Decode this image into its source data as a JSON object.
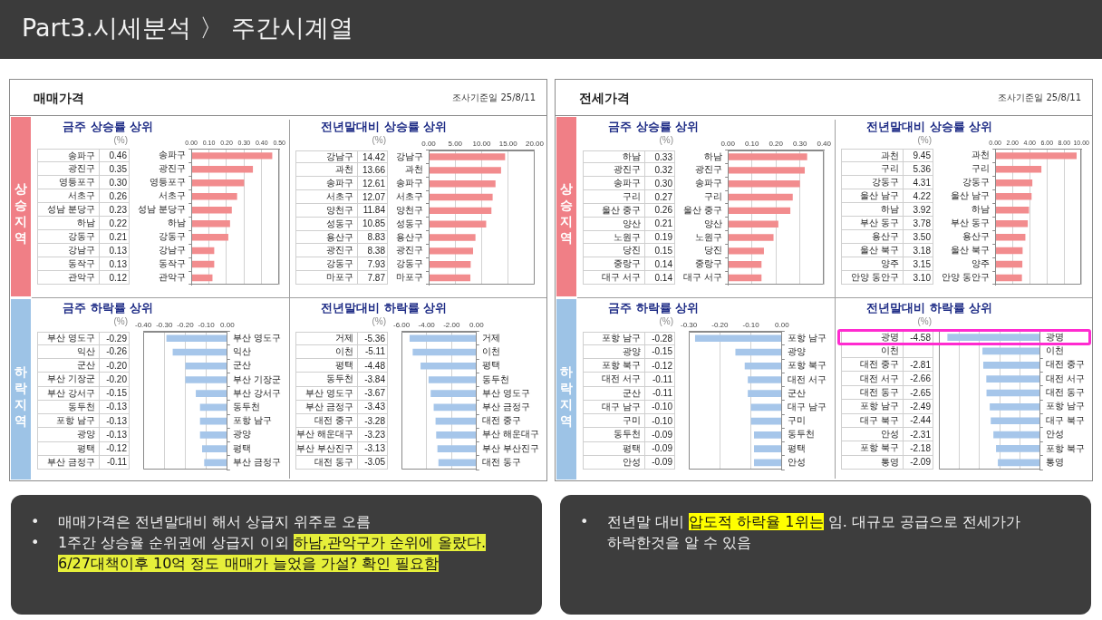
{
  "chart_data": [
    {
      "type": "other",
      "title": "Part3.시세분석 〉 주간시계열"
    },
    {
      "type": "other",
      "title": "매매가격",
      "annotations": [
        "조사기준일 25/8/11",
        "상승지역",
        "하락지역"
      ]
    },
    {
      "type": "bar",
      "orientation": "horizontal",
      "title": "금주 상승률 상위",
      "annotations": [
        "(%)"
      ],
      "categories": [
        "송파구",
        "광진구",
        "영등포구",
        "서초구",
        "성남 분당구",
        "하남",
        "강동구",
        "강남구",
        "동작구",
        "관악구"
      ],
      "values": [
        0.46,
        0.35,
        0.3,
        0.26,
        0.23,
        0.22,
        0.21,
        0.13,
        0.13,
        0.12
      ],
      "value_labels": [
        "0.46",
        "0.35",
        "0.30",
        "0.26",
        "0.23",
        "0.22",
        "0.21",
        "0.13",
        "0.13",
        "0.12"
      ],
      "color": "#f28c8e",
      "xlim": [
        0,
        0.5
      ],
      "xticks": [
        {
          "value": 0,
          "label": "0.00"
        },
        {
          "value": 0.1,
          "label": "0.10"
        },
        {
          "value": 0.2,
          "label": "0.20"
        },
        {
          "value": 0.3,
          "label": "0.30"
        },
        {
          "value": 0.4,
          "label": "0.40"
        },
        {
          "value": 0.5,
          "label": "0.50"
        }
      ],
      "grid": "x"
    },
    {
      "type": "bar",
      "orientation": "horizontal",
      "title": "전년말대비 상승률 상위",
      "annotations": [
        "(%)"
      ],
      "categories": [
        "강남구",
        "과천",
        "송파구",
        "서초구",
        "양천구",
        "성동구",
        "용산구",
        "광진구",
        "강동구",
        "마포구"
      ],
      "values": [
        14.42,
        13.66,
        12.61,
        12.07,
        11.84,
        10.85,
        8.83,
        8.38,
        7.93,
        7.87
      ],
      "value_labels": [
        "14.42",
        "13.66",
        "12.61",
        "12.07",
        "11.84",
        "10.85",
        "8.83",
        "8.38",
        "7.93",
        "7.87"
      ],
      "color": "#f28c8e",
      "xlim": [
        0,
        20
      ],
      "xticks": [
        {
          "value": 0,
          "label": "0.00"
        },
        {
          "value": 5,
          "label": "5.00"
        },
        {
          "value": 10,
          "label": "10.00"
        },
        {
          "value": 15,
          "label": "15.00"
        },
        {
          "value": 20,
          "label": "20.00"
        }
      ],
      "grid": "x"
    },
    {
      "type": "bar",
      "orientation": "horizontal",
      "title": "금주 하락률 상위",
      "annotations": [
        "(%)"
      ],
      "categories": [
        "부산 영도구",
        "익산",
        "군산",
        "부산 기장군",
        "부산 강서구",
        "동두천",
        "포항 남구",
        "광양",
        "평택",
        "부산 금정구"
      ],
      "values": [
        -0.29,
        -0.26,
        -0.2,
        -0.2,
        -0.15,
        -0.13,
        -0.13,
        -0.13,
        -0.12,
        -0.11
      ],
      "value_labels": [
        "-0.29",
        "-0.26",
        "-0.20",
        "-0.20",
        "-0.15",
        "-0.13",
        "-0.13",
        "-0.13",
        "-0.12",
        "-0.11"
      ],
      "color": "#a6c6ea",
      "xlim": [
        -0.4,
        0
      ],
      "xticks": [
        {
          "value": -0.4,
          "label": "-0.40"
        },
        {
          "value": -0.3,
          "label": "-0.30"
        },
        {
          "value": -0.2,
          "label": "-0.20"
        },
        {
          "value": -0.1,
          "label": "-0.10"
        },
        {
          "value": 0,
          "label": "0.00"
        }
      ],
      "grid": "x"
    },
    {
      "type": "bar",
      "orientation": "horizontal",
      "title": "전년말대비 하락률 상위",
      "annotations": [
        "(%)"
      ],
      "categories": [
        "거제",
        "이천",
        "평택",
        "동두천",
        "부산 영도구",
        "부산 금정구",
        "대전 중구",
        "부산 해운대구",
        "부산 부산진구",
        "대전 동구"
      ],
      "values": [
        -5.36,
        -5.11,
        -4.48,
        -3.84,
        -3.67,
        -3.43,
        -3.28,
        -3.23,
        -3.13,
        -3.05
      ],
      "value_labels": [
        "-5.36",
        "-5.11",
        "-4.48",
        "-3.84",
        "-3.67",
        "-3.43",
        "-3.28",
        "-3.23",
        "-3.13",
        "-3.05"
      ],
      "color": "#a6c6ea",
      "xlim": [
        -6,
        0
      ],
      "xticks": [
        {
          "value": -6,
          "label": "-6.00"
        },
        {
          "value": -4,
          "label": "-4.00"
        },
        {
          "value": -2,
          "label": "-2.00"
        },
        {
          "value": 0,
          "label": "0.00"
        }
      ],
      "grid": "x"
    },
    {
      "type": "other",
      "title": "전세가격",
      "annotations": [
        "조사기준일 25/8/11",
        "상승지역",
        "하락지역"
      ]
    },
    {
      "type": "bar",
      "orientation": "horizontal",
      "title": "금주 상승률 상위",
      "annotations": [
        "(%)"
      ],
      "categories": [
        "하남",
        "광진구",
        "송파구",
        "구리",
        "울산 중구",
        "양산",
        "노원구",
        "당진",
        "중랑구",
        "대구 서구"
      ],
      "values": [
        0.33,
        0.32,
        0.3,
        0.27,
        0.26,
        0.21,
        0.19,
        0.15,
        0.14,
        0.14
      ],
      "value_labels": [
        "0.33",
        "0.32",
        "0.30",
        "0.27",
        "0.26",
        "0.21",
        "0.19",
        "0.15",
        "0.14",
        "0.14"
      ],
      "color": "#f28c8e",
      "xlim": [
        0,
        0.4
      ],
      "xticks": [
        {
          "value": 0,
          "label": "0.00"
        },
        {
          "value": 0.1,
          "label": "0.10"
        },
        {
          "value": 0.2,
          "label": "0.20"
        },
        {
          "value": 0.3,
          "label": "0.30"
        },
        {
          "value": 0.4,
          "label": "0.40"
        }
      ],
      "grid": "x"
    },
    {
      "type": "bar",
      "orientation": "horizontal",
      "title": "전년말대비 상승률 상위",
      "annotations": [
        "(%)"
      ],
      "categories": [
        "과천",
        "구리",
        "강동구",
        "울산 남구",
        "하남",
        "부산 동구",
        "용산구",
        "울산 북구",
        "양주",
        "안양 동안구"
      ],
      "values": [
        9.45,
        5.36,
        4.31,
        4.22,
        3.92,
        3.78,
        3.5,
        3.18,
        3.15,
        3.1
      ],
      "value_labels": [
        "9.45",
        "5.36",
        "4.31",
        "4.22",
        "3.92",
        "3.78",
        "3.50",
        "3.18",
        "3.15",
        "3.10"
      ],
      "color": "#f28c8e",
      "xlim": [
        0,
        10
      ],
      "xticks": [
        {
          "value": 0,
          "label": "0.00"
        },
        {
          "value": 2,
          "label": "2.00"
        },
        {
          "value": 4,
          "label": "4.00"
        },
        {
          "value": 6,
          "label": "6.00"
        },
        {
          "value": 8,
          "label": "8.00"
        },
        {
          "value": 10,
          "label": "10.00"
        }
      ],
      "grid": "x"
    },
    {
      "type": "bar",
      "orientation": "horizontal",
      "title": "금주 하락률 상위",
      "annotations": [
        "(%)"
      ],
      "categories": [
        "포항 남구",
        "광양",
        "포항 북구",
        "대전 서구",
        "군산",
        "대구 남구",
        "구미",
        "동두천",
        "평택",
        "안성"
      ],
      "values": [
        -0.28,
        -0.15,
        -0.12,
        -0.11,
        -0.11,
        -0.1,
        -0.1,
        -0.09,
        -0.09,
        -0.09
      ],
      "value_labels": [
        "-0.28",
        "-0.15",
        "-0.12",
        "-0.11",
        "-0.11",
        "-0.10",
        "-0.10",
        "-0.09",
        "-0.09",
        "-0.09"
      ],
      "color": "#a6c6ea",
      "xlim": [
        -0.3,
        0
      ],
      "xticks": [
        {
          "value": -0.3,
          "label": "-0.30"
        },
        {
          "value": -0.2,
          "label": "-0.20"
        },
        {
          "value": -0.1,
          "label": "-0.10"
        },
        {
          "value": 0,
          "label": "0.00"
        }
      ],
      "grid": "x"
    },
    {
      "type": "bar",
      "orientation": "horizontal",
      "title": "전년말대비 하락률 상위",
      "annotations": [
        "(%)"
      ],
      "categories": [
        "광명",
        "이천",
        "대전 중구",
        "대전 서구",
        "대전 동구",
        "포항 남구",
        "대구 북구",
        "안성",
        "포항 북구",
        "통영"
      ],
      "values": [
        -4.58,
        -2.85,
        -2.81,
        -2.66,
        -2.65,
        -2.49,
        -2.44,
        -2.31,
        -2.18,
        -2.09
      ],
      "value_labels": [
        "-4.58",
        null,
        "-2.81",
        "-2.66",
        "-2.65",
        "-2.49",
        "-2.44",
        "-2.31",
        "-2.18",
        "-2.09"
      ],
      "color": "#a6c6ea",
      "xlim": [
        -5,
        0
      ],
      "xticks": [
        {
          "value": -5,
          "label": null
        },
        {
          "value": -4,
          "label": null
        },
        {
          "value": -3,
          "label": null
        },
        {
          "value": -2,
          "label": null
        },
        {
          "value": -1,
          "label": null
        },
        {
          "value": 0,
          "label": null
        }
      ],
      "grid": "x"
    },
    {
      "type": "other",
      "annotations": [
        "•",
        "매매가격은 전년말대비 해서 상급지 위주로 오름",
        "•",
        "1주간 상승율 순위권에 상급지 이외",
        "하남,관악구가 순위에 올랐다.",
        "6/27대책이후 10억 정도 매매가 늘었을 가설? 확인 필요함"
      ]
    },
    {
      "type": "other",
      "annotations": [
        "•",
        "전년말 대비",
        "압도적 하락율 1위는",
        "임. 대규모 공급으로 전세가가",
        "하락한것을 알 수 있음"
      ]
    }
  ]
}
